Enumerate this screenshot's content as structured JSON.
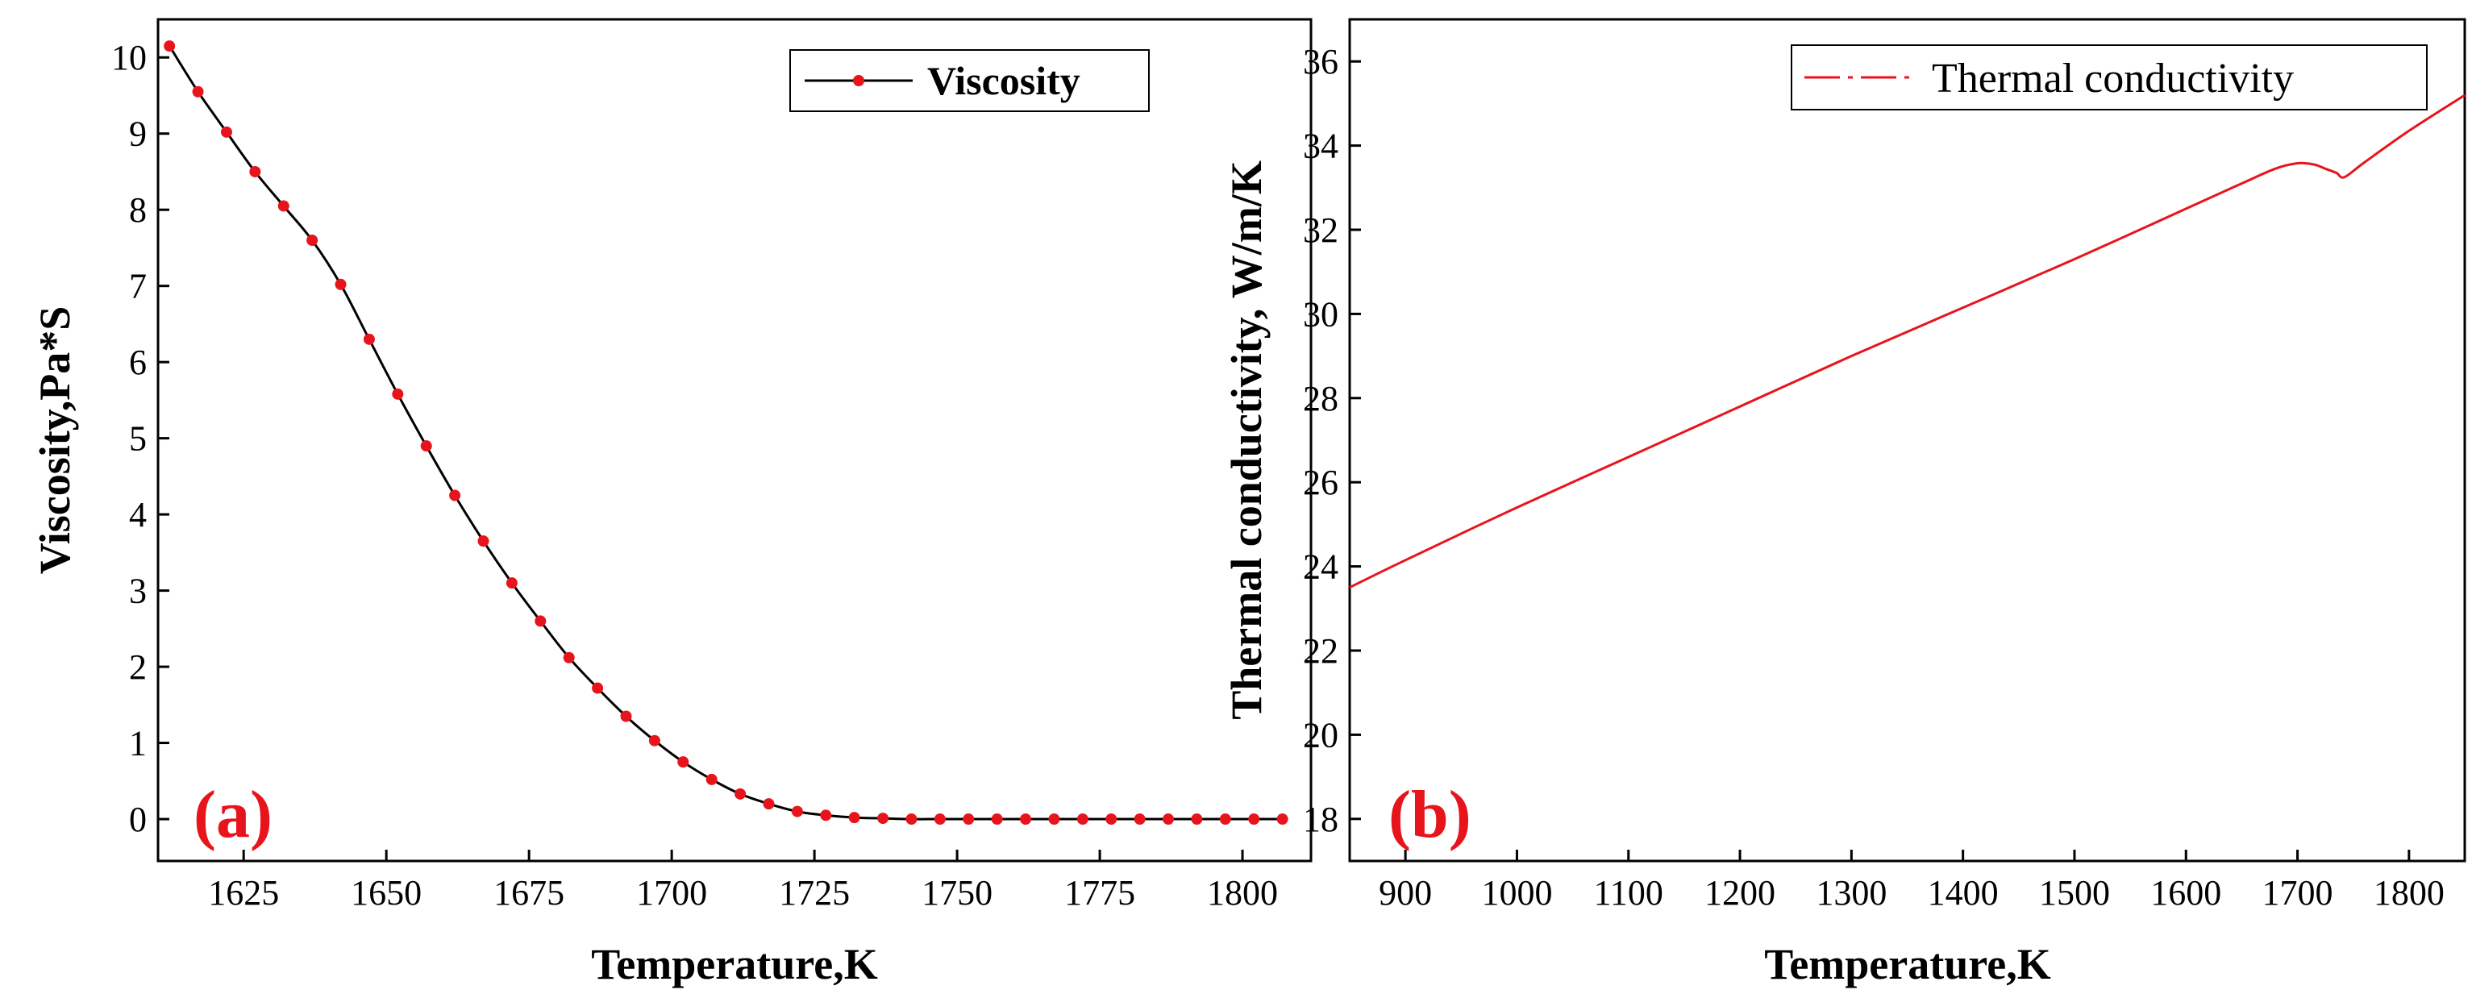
{
  "colors": {
    "viscosity_line": "#000000",
    "viscosity_marker": "#e8141c",
    "conductivity_line": "#e8141c",
    "panel_tag": "#e8141c"
  },
  "chart_data": [
    {
      "type": "line",
      "panel_label": "(a)",
      "xlabel": "Temperature,K",
      "ylabel": "Viscosity,Pa*S",
      "xlim": [
        1610,
        1812
      ],
      "ylim": [
        -0.55,
        10.5
      ],
      "xticks": [
        1625,
        1650,
        1675,
        1700,
        1725,
        1750,
        1775,
        1800
      ],
      "yticks": [
        0,
        1,
        2,
        3,
        4,
        5,
        6,
        7,
        8,
        9,
        10
      ],
      "legend": {
        "position": "top-right",
        "entries": [
          "Viscosity"
        ]
      },
      "series": [
        {
          "name": "Viscosity",
          "line_color": "#000000",
          "marker_color": "#e8141c",
          "x": [
            1612,
            1617,
            1622,
            1627,
            1632,
            1637,
            1642,
            1647,
            1652,
            1657,
            1662,
            1667,
            1672,
            1677,
            1682,
            1687,
            1692,
            1697,
            1702,
            1707,
            1712,
            1717,
            1722,
            1727,
            1732,
            1737,
            1742,
            1747,
            1752,
            1757,
            1762,
            1767,
            1772,
            1777,
            1782,
            1787,
            1792,
            1797,
            1802,
            1807
          ],
          "y": [
            10.15,
            9.55,
            9.02,
            8.5,
            8.05,
            7.6,
            7.02,
            6.3,
            5.58,
            4.9,
            4.25,
            3.65,
            3.1,
            2.6,
            2.12,
            1.72,
            1.35,
            1.03,
            0.75,
            0.52,
            0.33,
            0.2,
            0.1,
            0.05,
            0.02,
            0.01,
            0.0,
            0.0,
            0.0,
            0.0,
            0.0,
            0.0,
            0.0,
            0.0,
            0.0,
            0.0,
            0.0,
            0.0,
            0.0,
            0.0
          ]
        }
      ]
    },
    {
      "type": "line",
      "panel_label": "(b)",
      "xlabel": "Temperature,K",
      "ylabel": "Thermal conductivity, W/m/K",
      "xlim": [
        850,
        1850
      ],
      "ylim": [
        17,
        37
      ],
      "xticks": [
        900,
        1000,
        1100,
        1200,
        1300,
        1400,
        1500,
        1600,
        1700,
        1800
      ],
      "yticks": [
        18,
        20,
        22,
        24,
        26,
        28,
        30,
        32,
        34,
        36
      ],
      "legend": {
        "position": "top-right",
        "entries": [
          "Thermal conductivity"
        ]
      },
      "series": [
        {
          "name": "Thermal conductivity",
          "line_color": "#e8141c",
          "x": [
            850,
            900,
            1000,
            1100,
            1200,
            1300,
            1400,
            1500,
            1600,
            1650,
            1680,
            1700,
            1715,
            1725,
            1735,
            1742,
            1760,
            1800,
            1850
          ],
          "y": [
            23.5,
            24.15,
            25.4,
            26.6,
            27.8,
            29.0,
            30.15,
            31.3,
            32.5,
            33.1,
            33.45,
            33.58,
            33.55,
            33.45,
            33.35,
            33.25,
            33.6,
            34.35,
            35.2
          ]
        }
      ]
    }
  ]
}
